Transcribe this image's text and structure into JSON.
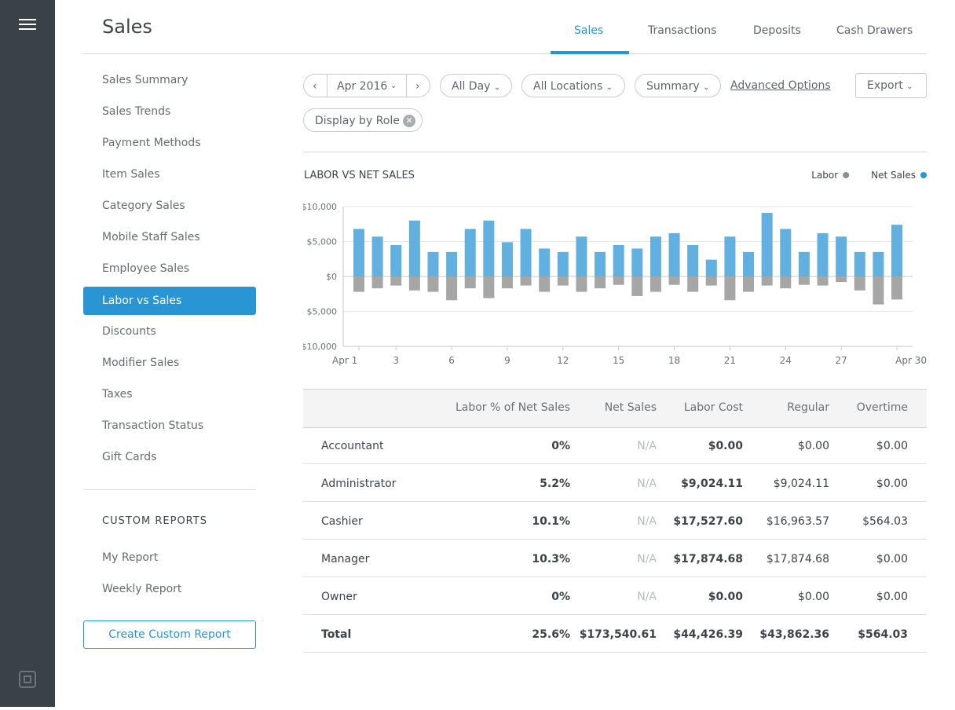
{
  "header": {
    "title": "Sales",
    "tabs": [
      "Sales",
      "Transactions",
      "Deposits",
      "Cash Drawers"
    ],
    "active_tab": 0
  },
  "sidebar": {
    "items": [
      "Sales Summary",
      "Sales Trends",
      "Payment Methods",
      "Item Sales",
      "Category Sales",
      "Mobile Staff Sales",
      "Employee Sales",
      "Labor vs Sales",
      "Discounts",
      "Modifier Sales",
      "Taxes",
      "Transaction Status",
      "Gift Cards"
    ],
    "active": 7,
    "custom_reports_heading": "CUSTOM REPORTS",
    "custom_reports": [
      "My Report",
      "Weekly Report"
    ],
    "create_button": "Create Custom Report"
  },
  "filters": {
    "date": "Apr 2016",
    "time": "All Day",
    "locations": "All Locations",
    "view": "Summary",
    "advanced": "Advanced Options",
    "export": "Export",
    "chip": "Display by Role"
  },
  "chart_data": {
    "type": "bar",
    "title": "LABOR VS NET SALES",
    "x": [
      1,
      2,
      3,
      4,
      5,
      6,
      7,
      8,
      9,
      10,
      11,
      12,
      13,
      14,
      15,
      16,
      17,
      18,
      19,
      20,
      21,
      22,
      23,
      24,
      25,
      26,
      27,
      28,
      29,
      30
    ],
    "series": [
      {
        "name": "Labor",
        "color": "#a6a6a6",
        "values": [
          -2200,
          -1700,
          -1300,
          -2000,
          -2200,
          -3400,
          -1700,
          -3100,
          -1700,
          -1300,
          -2200,
          -1300,
          -2200,
          -1700,
          -1200,
          -2800,
          -2200,
          -1200,
          -2200,
          -1300,
          -3400,
          -2200,
          -1300,
          -1700,
          -1200,
          -1300,
          -800,
          -2000,
          -4000,
          -3300
        ]
      },
      {
        "name": "Net Sales",
        "color": "#62b0df",
        "values": [
          6800,
          5700,
          4500,
          8000,
          3500,
          3500,
          6800,
          8000,
          4900,
          6800,
          4000,
          3500,
          5700,
          3500,
          4500,
          4000,
          5700,
          6200,
          4500,
          2400,
          5700,
          3500,
          9100,
          6800,
          3500,
          6200,
          5700,
          3500,
          3500,
          7400
        ]
      }
    ],
    "xlim": [
      1,
      30
    ],
    "xticks": [
      {
        "value": 1,
        "label": "Apr 1"
      },
      3,
      6,
      9,
      12,
      15,
      18,
      21,
      24,
      27,
      {
        "value": 30,
        "label": "Apr 30"
      }
    ],
    "ylim": [
      -10000,
      10000
    ],
    "yticks": [
      {
        "value": 10000,
        "label": "$10,000"
      },
      {
        "value": 5000,
        "label": "$5,000"
      },
      {
        "value": 0,
        "label": "$0"
      },
      {
        "value": -5000,
        "label": "$5,000"
      },
      {
        "value": -10000,
        "label": "$10,000"
      }
    ],
    "grid": true,
    "legend": "top-right"
  },
  "table": {
    "columns": [
      "Labor % of Net Sales",
      "Net Sales",
      "Labor Cost",
      "Regular",
      "Overtime"
    ],
    "rows": [
      [
        "Accountant",
        "0%",
        "N/A",
        "$0.00",
        "$0.00",
        "$0.00"
      ],
      [
        "Administrator",
        "5.2%",
        "N/A",
        "$9,024.11",
        "$9,024.11",
        "$0.00"
      ],
      [
        "Cashier",
        "10.1%",
        "N/A",
        "$17,527.60",
        "$16,963.57",
        "$564.03"
      ],
      [
        "Manager",
        "10.3%",
        "N/A",
        "$17,874.68",
        "$17,874.68",
        "$0.00"
      ],
      [
        "Owner",
        "0%",
        "N/A",
        "$0.00",
        "$0.00",
        "$0.00"
      ]
    ],
    "total": [
      "Total",
      "25.6%",
      "$173,540.61",
      "$44,426.39",
      "$43,862.36",
      "$564.03"
    ]
  }
}
